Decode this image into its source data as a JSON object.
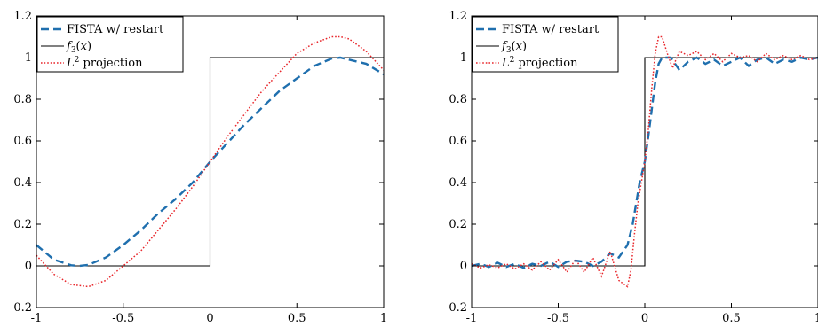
{
  "chart_data": [
    {
      "type": "line",
      "xlim": [
        -1,
        1
      ],
      "ylim": [
        -0.2,
        1.2
      ],
      "x_ticks": [
        -1,
        -0.5,
        0,
        0.5,
        1
      ],
      "x_tick_labels": [
        "-1",
        "-0.5",
        "0",
        "0.5",
        "1"
      ],
      "y_ticks": [
        -0.2,
        0,
        0.2,
        0.4,
        0.6,
        0.8,
        1,
        1.2
      ],
      "y_tick_labels": [
        "-0.2",
        "0",
        "0.2",
        "0.4",
        "0.6",
        "0.8",
        "1",
        "1.2"
      ],
      "grid": false,
      "legend_position": "top-left",
      "legend": [
        {
          "label": "FISTA w/ restart",
          "color": "#1f6fae",
          "style": "dashed"
        },
        {
          "label": "f3(x)",
          "color": "#000000",
          "style": "solid"
        },
        {
          "label": "L2 projection",
          "color": "#e8262b",
          "style": "dotted"
        }
      ],
      "series": [
        {
          "name": "FISTA w/ restart",
          "x": [
            -1,
            -0.9,
            -0.8,
            -0.75,
            -0.7,
            -0.6,
            -0.5,
            -0.4,
            -0.3,
            -0.2,
            -0.1,
            0,
            0.1,
            0.2,
            0.3,
            0.4,
            0.5,
            0.6,
            0.7,
            0.75,
            0.8,
            0.9,
            1
          ],
          "y": [
            0.1,
            0.03,
            0.003,
            0,
            0.005,
            0.04,
            0.1,
            0.17,
            0.25,
            0.32,
            0.4,
            0.5,
            0.59,
            0.68,
            0.76,
            0.84,
            0.9,
            0.96,
            0.995,
            1,
            0.99,
            0.97,
            0.92
          ]
        },
        {
          "name": "f3(x)",
          "x": [
            -1,
            0,
            0,
            1
          ],
          "y": [
            0,
            0,
            1,
            1
          ]
        },
        {
          "name": "L2 projection",
          "x": [
            -1,
            -0.9,
            -0.8,
            -0.7,
            -0.6,
            -0.5,
            -0.4,
            -0.3,
            -0.2,
            -0.1,
            0,
            0.1,
            0.2,
            0.3,
            0.4,
            0.5,
            0.6,
            0.7,
            0.75,
            0.8,
            0.9,
            1
          ],
          "y": [
            0.05,
            -0.04,
            -0.09,
            -0.1,
            -0.07,
            0,
            0.07,
            0.17,
            0.27,
            0.38,
            0.5,
            0.62,
            0.73,
            0.84,
            0.93,
            1.02,
            1.07,
            1.1,
            1.1,
            1.09,
            1.03,
            0.94
          ]
        }
      ]
    },
    {
      "type": "line",
      "xlim": [
        -1,
        1
      ],
      "ylim": [
        -0.2,
        1.2
      ],
      "x_ticks": [
        -1,
        -0.5,
        0,
        0.5,
        1
      ],
      "x_tick_labels": [
        "-1",
        "-0.5",
        "0",
        "0.5",
        "1"
      ],
      "y_ticks": [
        -0.2,
        0,
        0.2,
        0.4,
        0.6,
        0.8,
        1,
        1.2
      ],
      "y_tick_labels": [
        "-0.2",
        "0",
        "0.2",
        "0.4",
        "0.6",
        "0.8",
        "1",
        "1.2"
      ],
      "grid": false,
      "legend_position": "top-left",
      "legend": [
        {
          "label": "FISTA w/ restart",
          "color": "#1f6fae",
          "style": "dashed"
        },
        {
          "label": "f3(x)",
          "color": "#000000",
          "style": "solid"
        },
        {
          "label": "L2 projection",
          "color": "#e8262b",
          "style": "dotted"
        }
      ],
      "series": [
        {
          "name": "FISTA w/ restart",
          "x": [
            -1,
            -0.95,
            -0.9,
            -0.85,
            -0.8,
            -0.75,
            -0.7,
            -0.65,
            -0.6,
            -0.55,
            -0.5,
            -0.45,
            -0.4,
            -0.35,
            -0.3,
            -0.25,
            -0.2,
            -0.15,
            -0.1,
            -0.07,
            -0.05,
            -0.03,
            0,
            0.02,
            0.04,
            0.06,
            0.08,
            0.1,
            0.15,
            0.2,
            0.25,
            0.3,
            0.35,
            0.4,
            0.45,
            0.5,
            0.55,
            0.6,
            0.65,
            0.7,
            0.75,
            0.8,
            0.85,
            0.9,
            0.95,
            1
          ],
          "y": [
            0,
            0.01,
            -0.005,
            0.015,
            -0.005,
            0.01,
            -0.01,
            0.01,
            0,
            0.02,
            -0.005,
            0.02,
            0.025,
            0.02,
            0.0,
            0.02,
            0.06,
            0.04,
            0.1,
            0.2,
            0.3,
            0.4,
            0.5,
            0.62,
            0.75,
            0.88,
            0.97,
            1.0,
            1.0,
            0.94,
            0.98,
            1.0,
            0.97,
            0.99,
            0.96,
            0.98,
            1.0,
            0.96,
            0.99,
            1.0,
            0.97,
            0.99,
            0.98,
            1.0,
            0.99,
            1.0
          ]
        },
        {
          "name": "f3(x)",
          "x": [
            -1,
            0,
            0,
            1
          ],
          "y": [
            0,
            0,
            1,
            1
          ]
        },
        {
          "name": "L2 projection",
          "x": [
            -1,
            -0.95,
            -0.9,
            -0.85,
            -0.8,
            -0.75,
            -0.7,
            -0.65,
            -0.6,
            -0.55,
            -0.5,
            -0.45,
            -0.4,
            -0.35,
            -0.3,
            -0.25,
            -0.2,
            -0.15,
            -0.1,
            -0.08,
            -0.06,
            -0.04,
            -0.02,
            0,
            0.02,
            0.04,
            0.06,
            0.08,
            0.1,
            0.13,
            0.16,
            0.2,
            0.25,
            0.3,
            0.35,
            0.4,
            0.45,
            0.5,
            0.55,
            0.6,
            0.65,
            0.7,
            0.75,
            0.8,
            0.85,
            0.9,
            0.95,
            1
          ],
          "y": [
            0.01,
            -0.01,
            0.005,
            -0.01,
            0.01,
            -0.015,
            0.01,
            -0.02,
            0.02,
            -0.02,
            0.03,
            -0.03,
            0.03,
            -0.03,
            0.04,
            -0.05,
            0.07,
            -0.07,
            -0.1,
            -0.02,
            0.15,
            0.3,
            0.4,
            0.5,
            0.65,
            0.85,
            1.02,
            1.1,
            1.1,
            1.02,
            0.95,
            1.03,
            1.01,
            1.03,
            0.99,
            1.02,
            0.98,
            1.02,
            1.0,
            1.01,
            0.98,
            1.02,
            0.99,
            1.01,
            0.99,
            1.01,
            0.99,
            1.0
          ]
        }
      ]
    }
  ]
}
